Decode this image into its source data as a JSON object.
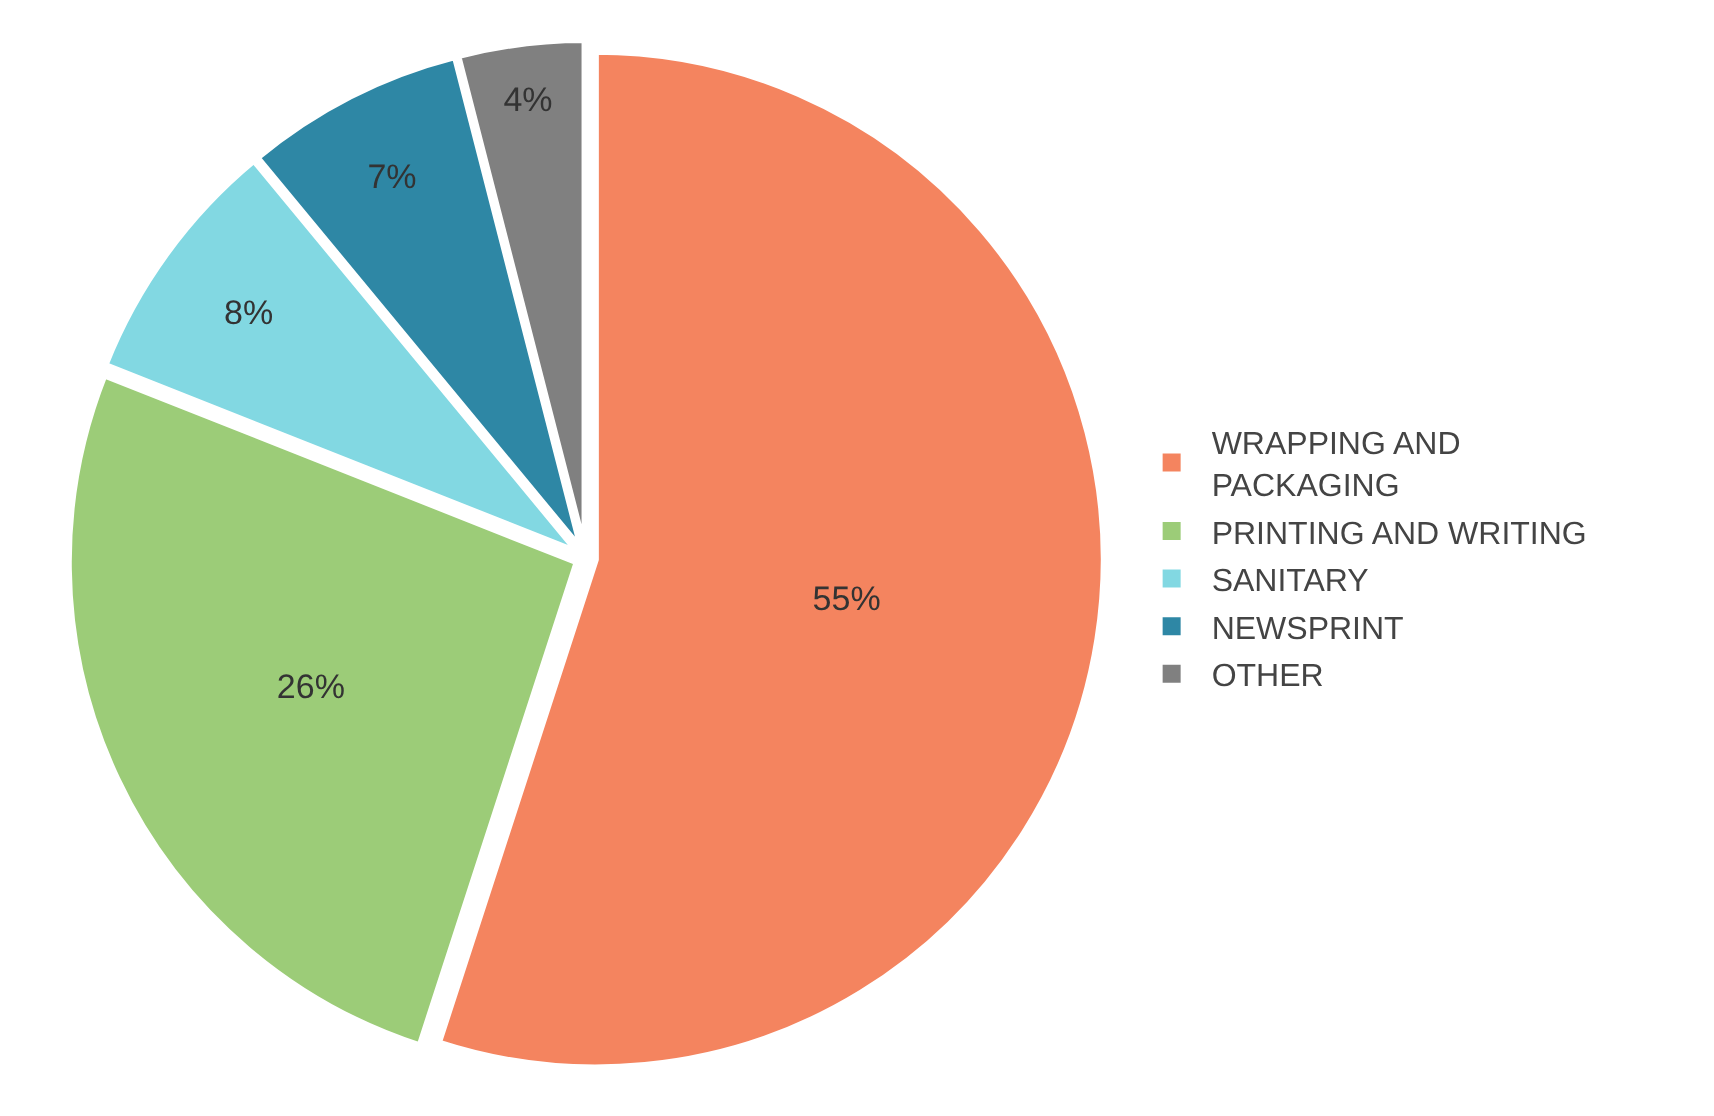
{
  "chart_data": {
    "type": "pie",
    "categories": [
      "WRAPPING AND PACKAGING",
      "PRINTING AND WRITING",
      "SANITARY",
      "NEWSPRINT",
      "OTHER"
    ],
    "values": [
      55,
      26,
      8,
      7,
      4
    ],
    "colors": [
      "#f4845f",
      "#9ccc78",
      "#82d8e2",
      "#2e87a5",
      "#808080"
    ],
    "value_labels": [
      "55%",
      "26%",
      "8%",
      "7%",
      "4%"
    ],
    "legend": "right"
  }
}
